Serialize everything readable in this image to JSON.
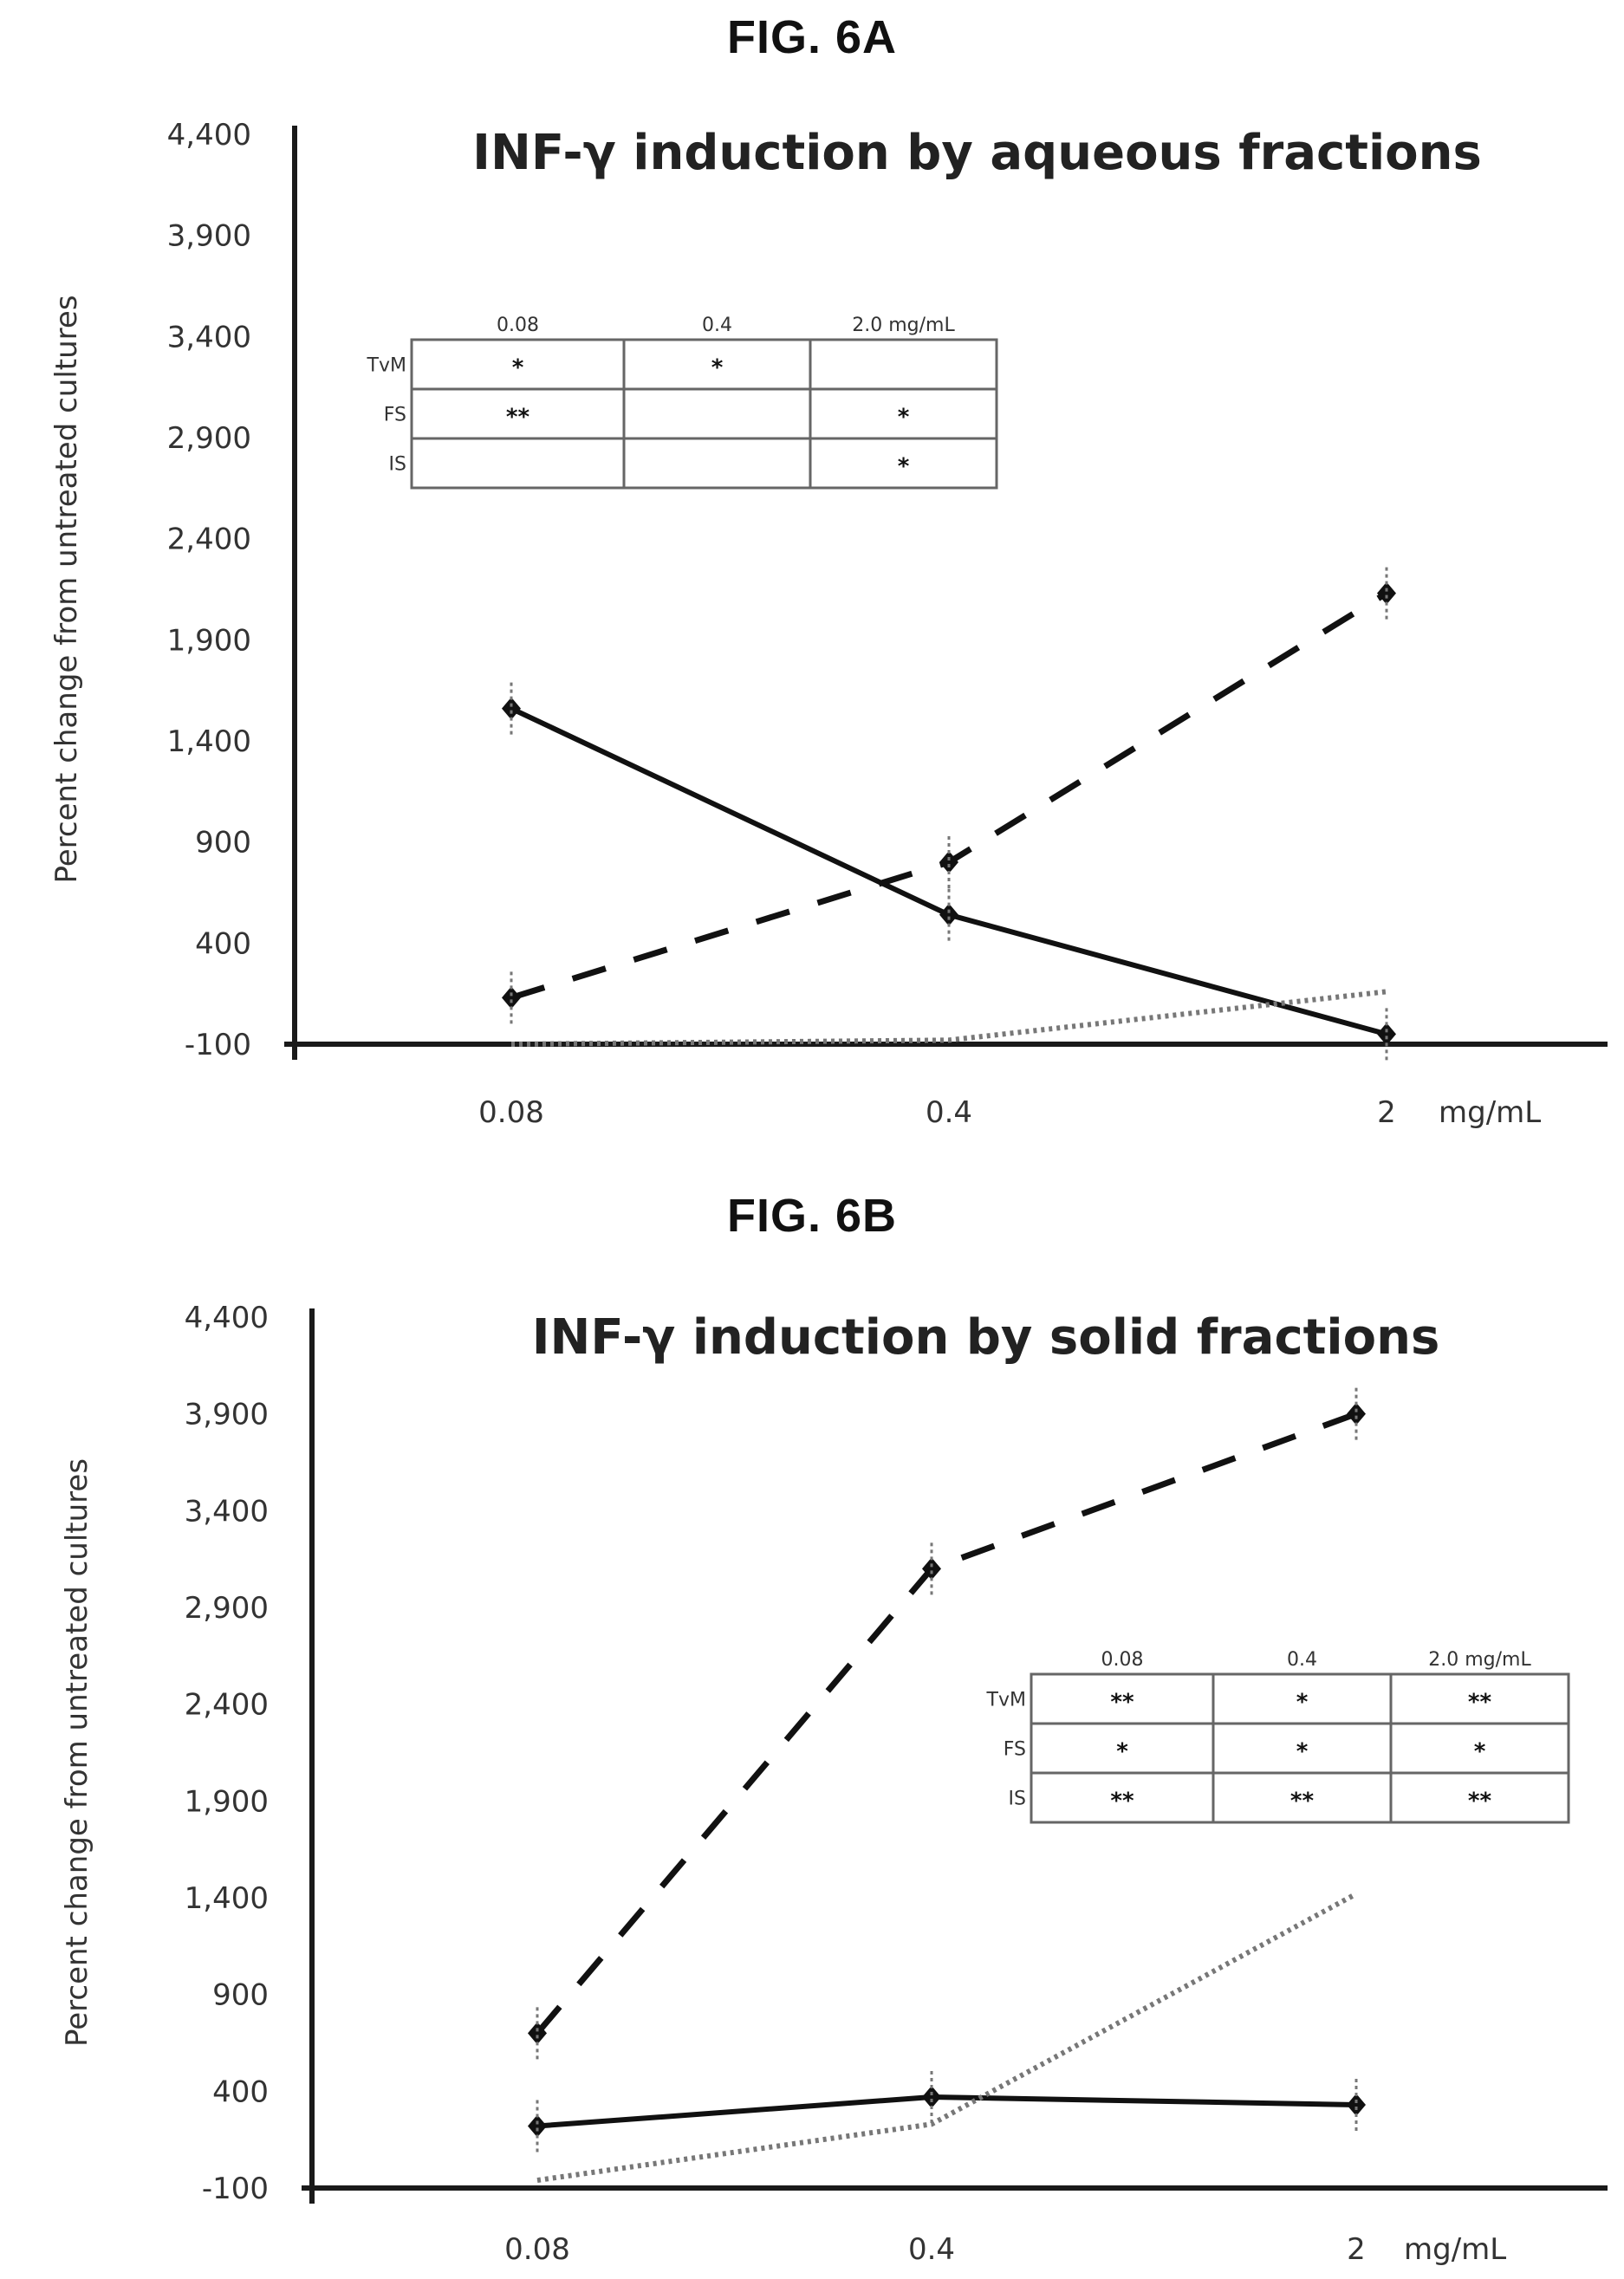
{
  "figures": [
    {
      "label": "FIG. 6A"
    },
    {
      "label": "FIG. 6B"
    }
  ],
  "chart_data": [
    {
      "type": "line",
      "title": "INF-γ induction by aqueous fractions",
      "ylabel": "Percent change from untreated cultures",
      "xlabel": "",
      "x_unit_label": "mg/mL",
      "categories": [
        "0.08",
        "0.4",
        "2"
      ],
      "ylim": [
        -100,
        4400
      ],
      "yticks": [
        "-100",
        "400",
        "900",
        "1,400",
        "1,900",
        "2,400",
        "2,900",
        "3,400",
        "3,900",
        "4,400"
      ],
      "series": [
        {
          "style": "solid",
          "values": [
            1560,
            540,
            -50
          ]
        },
        {
          "style": "dashed",
          "values": [
            130,
            800,
            2130
          ]
        },
        {
          "style": "dotted",
          "values": [
            -100,
            -80,
            160
          ]
        }
      ],
      "table": {
        "placement": "top-left",
        "columns": [
          "0.08",
          "0.4",
          "2.0 mg/mL"
        ],
        "rows": [
          {
            "label": "TvM",
            "cells": [
              "*",
              "*",
              ""
            ]
          },
          {
            "label": "FS",
            "cells": [
              "**",
              "",
              "*"
            ]
          },
          {
            "label": "IS",
            "cells": [
              "",
              "",
              "*"
            ]
          }
        ]
      }
    },
    {
      "type": "line",
      "title": "INF-γ induction by solid fractions",
      "ylabel": "Percent change from untreated cultures",
      "xlabel": "",
      "x_unit_label": "mg/mL",
      "categories": [
        "0.08",
        "0.4",
        "2"
      ],
      "ylim": [
        -100,
        4400
      ],
      "yticks": [
        "-100",
        "400",
        "900",
        "1,400",
        "1,900",
        "2,400",
        "2,900",
        "3,400",
        "3,900",
        "4,400"
      ],
      "series": [
        {
          "style": "dashed",
          "values": [
            700,
            3100,
            3900
          ]
        },
        {
          "style": "solid",
          "values": [
            220,
            370,
            330
          ]
        },
        {
          "style": "dotted",
          "values": [
            -60,
            230,
            1420
          ]
        }
      ],
      "table": {
        "placement": "center-right",
        "columns": [
          "0.08",
          "0.4",
          "2.0 mg/mL"
        ],
        "rows": [
          {
            "label": "TvM",
            "cells": [
              "**",
              "*",
              "**"
            ]
          },
          {
            "label": "FS",
            "cells": [
              "*",
              "*",
              "*"
            ]
          },
          {
            "label": "IS",
            "cells": [
              "**",
              "**",
              "**"
            ]
          }
        ]
      }
    }
  ]
}
